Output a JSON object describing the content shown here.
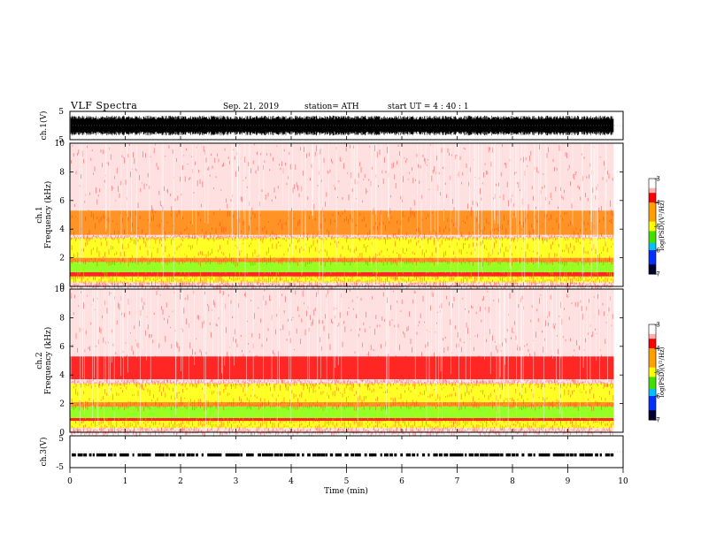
{
  "header": {
    "title": "VLF  Spectra",
    "date": "Sep. 21, 2019",
    "station": "station= ATH",
    "start": "start  UT  =   4  : 40 : 1"
  },
  "colors": {
    "axes": "#000000",
    "background": "#ffffff",
    "colormap": [
      "#000000",
      "#0000d0",
      "#00a0ff",
      "#00e000",
      "#80ff00",
      "#ffff00",
      "#ff8000",
      "#ff0000",
      "#ffffff"
    ]
  },
  "chart_data": [
    {
      "type": "line",
      "name": "ch.1 waveform",
      "ylabel": "ch.1(V)",
      "yticks": [
        "5",
        "-5"
      ],
      "ylim": [
        -5,
        5
      ],
      "xlim": [
        0,
        10
      ],
      "data_end_min": 9.83,
      "amplitude_V": 3.5
    },
    {
      "type": "heatmap",
      "name": "ch.1 spectrogram",
      "ylabel_line1": "ch.1",
      "ylabel_line2": "Frequency  (kHz)",
      "yticks": [
        "0",
        "2",
        "4",
        "6",
        "8",
        "10"
      ],
      "ylim_kHz": [
        0,
        10
      ],
      "xlim_min": [
        0,
        10
      ],
      "data_end_min": 9.83,
      "colorbar": {
        "label": "log(PSD)(V²/Hz)",
        "ticks": [
          "-3",
          "-4",
          "-5",
          "-6",
          "-7"
        ],
        "range": [
          -7,
          -3
        ]
      },
      "bands_kHz": [
        {
          "from": 0.0,
          "to": 0.3,
          "log_psd": -3.3
        },
        {
          "from": 0.3,
          "to": 0.7,
          "log_psd": -4.4
        },
        {
          "from": 0.7,
          "to": 1.0,
          "log_psd": -3.6
        },
        {
          "from": 1.0,
          "to": 1.7,
          "log_psd": -4.9
        },
        {
          "from": 1.7,
          "to": 2.0,
          "log_psd": -4.0
        },
        {
          "from": 2.0,
          "to": 3.4,
          "log_psd": -4.3
        },
        {
          "from": 3.4,
          "to": 3.6,
          "log_psd": -3.2
        },
        {
          "from": 3.6,
          "to": 5.3,
          "log_psd": -3.8
        },
        {
          "from": 5.3,
          "to": 10.0,
          "log_psd": -3.2
        }
      ]
    },
    {
      "type": "heatmap",
      "name": "ch.2 spectrogram",
      "ylabel_line1": "ch.2",
      "ylabel_line2": "Frequency  (kHz)",
      "yticks": [
        "0",
        "2",
        "4",
        "6",
        "8",
        "10"
      ],
      "ylim_kHz": [
        0,
        10
      ],
      "xlim_min": [
        0,
        10
      ],
      "data_end_min": 9.83,
      "colorbar": {
        "label": "log(PSD)(V²/Hz)",
        "ticks": [
          "-3",
          "-4",
          "-5",
          "-6",
          "-7"
        ],
        "range": [
          -7,
          -3
        ]
      },
      "bands_kHz": [
        {
          "from": 0.0,
          "to": 0.3,
          "log_psd": -3.3
        },
        {
          "from": 0.3,
          "to": 0.8,
          "log_psd": -4.3
        },
        {
          "from": 0.8,
          "to": 1.0,
          "log_psd": -3.7
        },
        {
          "from": 1.0,
          "to": 1.8,
          "log_psd": -4.9
        },
        {
          "from": 1.8,
          "to": 2.1,
          "log_psd": -4.0
        },
        {
          "from": 2.1,
          "to": 3.4,
          "log_psd": -4.4
        },
        {
          "from": 3.4,
          "to": 3.7,
          "log_psd": -3.3
        },
        {
          "from": 3.7,
          "to": 5.3,
          "log_psd": -3.7
        },
        {
          "from": 5.3,
          "to": 10.0,
          "log_psd": -3.2
        }
      ]
    },
    {
      "type": "line",
      "name": "ch.3 waveform",
      "ylabel": "ch.3(V)",
      "yticks": [
        "5",
        "-5"
      ],
      "ylim": [
        -5,
        5
      ],
      "xlim": [
        0,
        10
      ],
      "data_end_min": 9.83,
      "level_V": -1.0
    },
    {
      "type": "axis",
      "name": "time axis",
      "xlabel": "Time  (min)",
      "xticks": [
        "0",
        "1",
        "2",
        "3",
        "4",
        "5",
        "6",
        "7",
        "8",
        "9",
        "10"
      ]
    }
  ]
}
